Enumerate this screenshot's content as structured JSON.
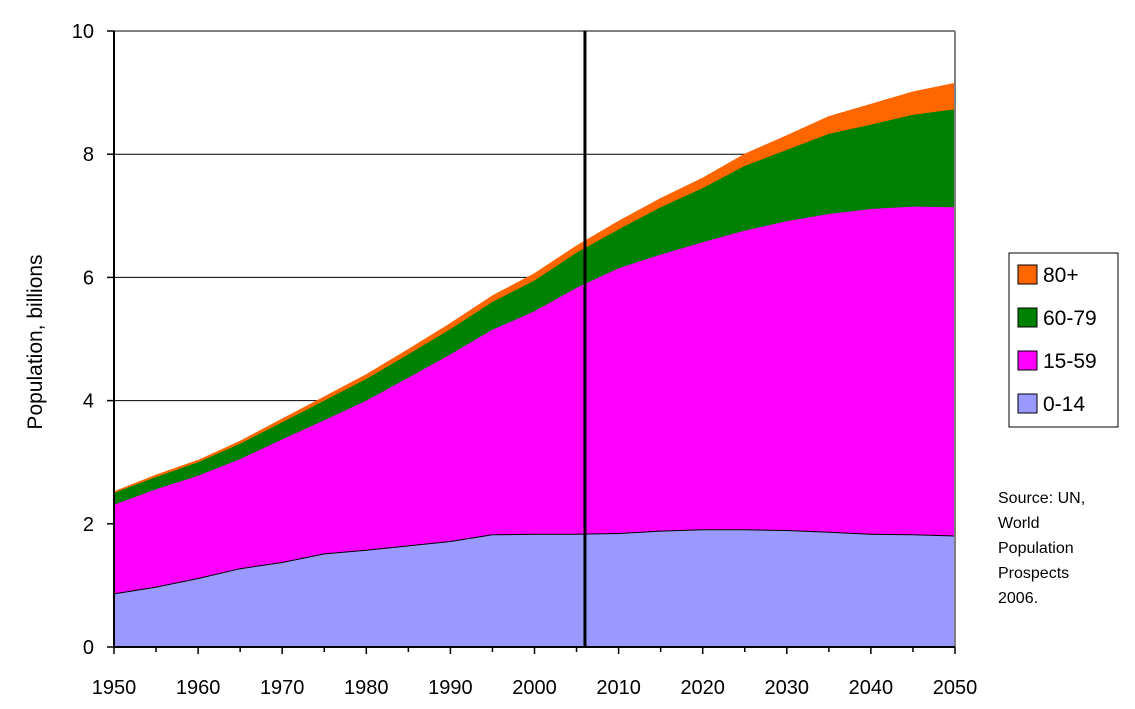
{
  "chart_data": {
    "type": "area",
    "stacked": true,
    "title": "",
    "xlabel": "",
    "ylabel": "Population, billions",
    "xlim": [
      1950,
      2050
    ],
    "ylim": [
      0,
      10
    ],
    "xticks": [
      "1950",
      "1960",
      "1970",
      "1980",
      "1990",
      "2000",
      "2010",
      "2020",
      "2030",
      "2040",
      "2050"
    ],
    "yticks": [
      "0",
      "2",
      "4",
      "6",
      "8",
      "10"
    ],
    "grid": "horizontal",
    "legend_position": "right",
    "vertical_marker_x": 2006,
    "x": [
      1950,
      1955,
      1960,
      1965,
      1970,
      1975,
      1980,
      1985,
      1990,
      1995,
      2000,
      2005,
      2010,
      2015,
      2020,
      2025,
      2030,
      2035,
      2040,
      2045,
      2050
    ],
    "series": [
      {
        "name": "0-14",
        "color": "#9999ff",
        "values": [
          0.87,
          0.98,
          1.12,
          1.28,
          1.38,
          1.52,
          1.58,
          1.65,
          1.72,
          1.83,
          1.84,
          1.84,
          1.85,
          1.89,
          1.91,
          1.91,
          1.9,
          1.87,
          1.84,
          1.83,
          1.81
        ]
      },
      {
        "name": "15-59",
        "color": "#ff00ff",
        "values": [
          1.44,
          1.58,
          1.66,
          1.77,
          1.99,
          2.16,
          2.42,
          2.72,
          3.03,
          3.32,
          3.61,
          3.99,
          4.3,
          4.48,
          4.66,
          4.85,
          5.01,
          5.16,
          5.27,
          5.32,
          5.33
        ]
      },
      {
        "name": "60-79",
        "color": "#008000",
        "values": [
          0.19,
          0.2,
          0.22,
          0.25,
          0.28,
          0.32,
          0.35,
          0.38,
          0.41,
          0.45,
          0.5,
          0.57,
          0.63,
          0.77,
          0.88,
          1.05,
          1.16,
          1.3,
          1.37,
          1.49,
          1.59
        ]
      },
      {
        "name": "80+",
        "color": "#ff6600",
        "values": [
          0.02,
          0.03,
          0.03,
          0.04,
          0.05,
          0.06,
          0.07,
          0.08,
          0.09,
          0.1,
          0.11,
          0.11,
          0.13,
          0.14,
          0.16,
          0.19,
          0.23,
          0.28,
          0.33,
          0.37,
          0.42
        ]
      }
    ],
    "legend_order": [
      "80+",
      "60-79",
      "15-59",
      "0-14"
    ]
  },
  "source_note": [
    "Source: UN,",
    "World",
    "Population",
    "Prospects",
    "2006."
  ],
  "colors": {
    "axis": "#000000",
    "plot_border": "#808080",
    "grid": "#000000",
    "background": "#ffffff"
  }
}
